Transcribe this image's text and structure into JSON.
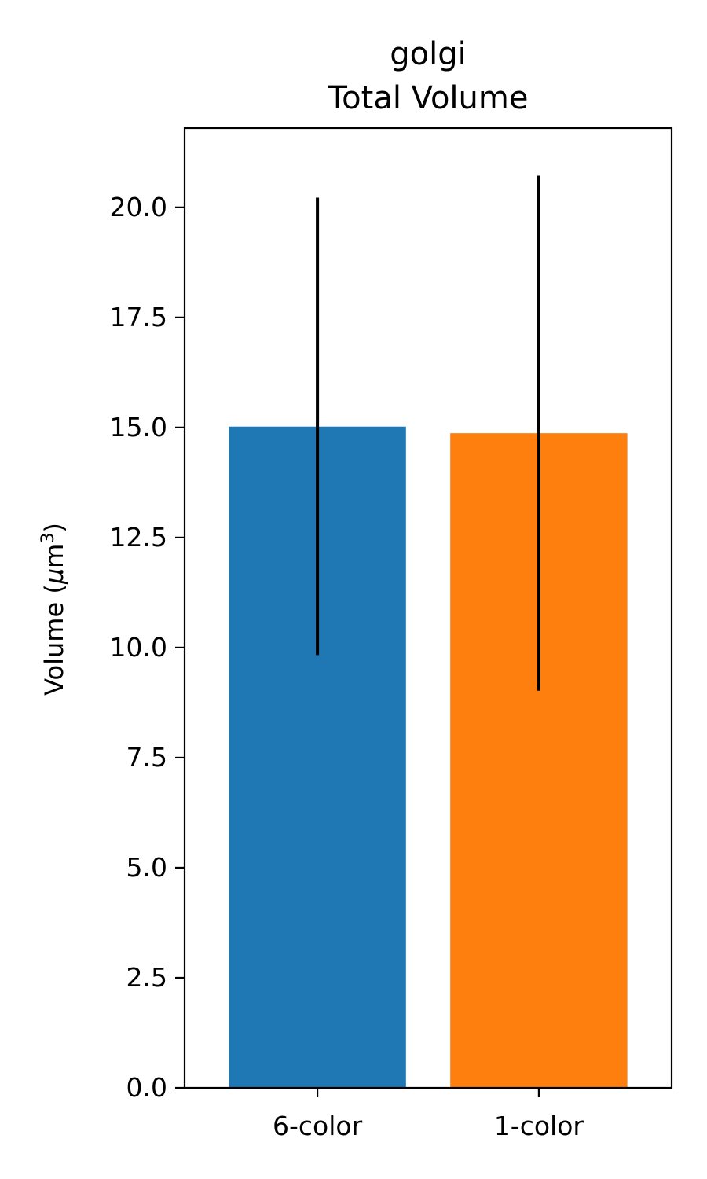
{
  "chart_data": {
    "type": "bar",
    "title_line1": "golgi",
    "title_line2": "Total Volume",
    "xlabel": "",
    "ylabel": "Volume (μm³)",
    "ylabel_main": "Volume (",
    "ylabel_mu": "μ",
    "ylabel_m": "m",
    "ylabel_sup": "3",
    "ylabel_close": ")",
    "categories": [
      "6-color",
      "1-color"
    ],
    "values": [
      15.02,
      14.87
    ],
    "error_low": [
      9.83,
      9.02
    ],
    "error_high": [
      20.22,
      20.72
    ],
    "colors": [
      "#1f77b4",
      "#ff7f0e"
    ],
    "error_color": "#000000",
    "ylim": [
      0,
      21.8
    ],
    "yticks": [
      0.0,
      2.5,
      5.0,
      7.5,
      10.0,
      12.5,
      15.0,
      17.5,
      20.0
    ],
    "ytick_labels": [
      "0.0",
      "2.5",
      "5.0",
      "7.5",
      "10.0",
      "12.5",
      "15.0",
      "17.5",
      "20.0"
    ],
    "grid": false,
    "legend": "none"
  }
}
